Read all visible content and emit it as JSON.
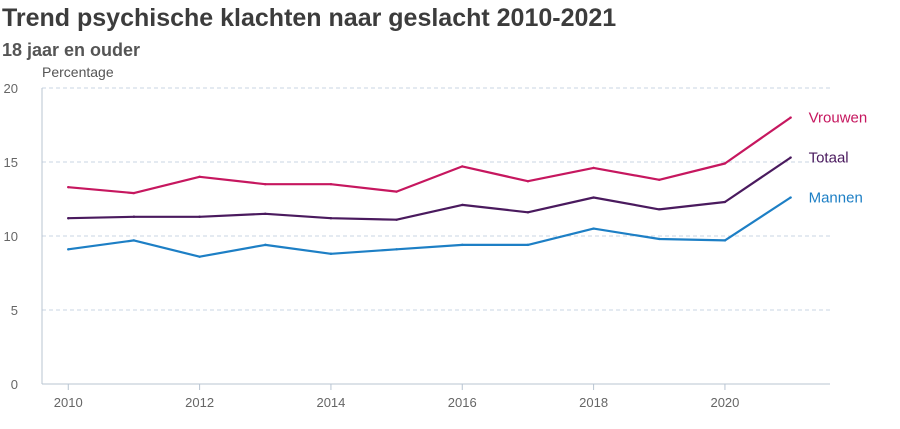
{
  "chart_data": {
    "type": "line",
    "title": "Trend psychische klachten naar geslacht 2010-2021",
    "subtitle": "18 jaar en ouder",
    "ylabel": "Percentage",
    "xlabel": "",
    "x": [
      2010,
      2011,
      2012,
      2013,
      2014,
      2015,
      2016,
      2017,
      2018,
      2019,
      2020,
      2021
    ],
    "x_ticks": [
      2010,
      2012,
      2014,
      2016,
      2018,
      2020
    ],
    "y_ticks": [
      0,
      5,
      10,
      15,
      20
    ],
    "ylim": [
      0,
      20
    ],
    "xlim": [
      2009.6,
      2021.6
    ],
    "grid": "horizontal dashed",
    "legend_position": "right, at line ends",
    "series": [
      {
        "name": "Vrouwen",
        "color": "#c6175f",
        "values": [
          13.3,
          12.9,
          14.0,
          13.5,
          13.5,
          13.0,
          14.7,
          13.7,
          14.6,
          13.8,
          14.9,
          18.0
        ]
      },
      {
        "name": "Totaal",
        "color": "#4a1a5e",
        "values": [
          11.2,
          11.3,
          11.3,
          11.5,
          11.2,
          11.1,
          12.1,
          11.6,
          12.6,
          11.8,
          12.3,
          15.3
        ]
      },
      {
        "name": "Mannen",
        "color": "#1d7fc5",
        "values": [
          9.1,
          9.7,
          8.6,
          9.4,
          8.8,
          9.1,
          9.4,
          9.4,
          10.5,
          9.8,
          9.7,
          12.6
        ]
      }
    ]
  }
}
